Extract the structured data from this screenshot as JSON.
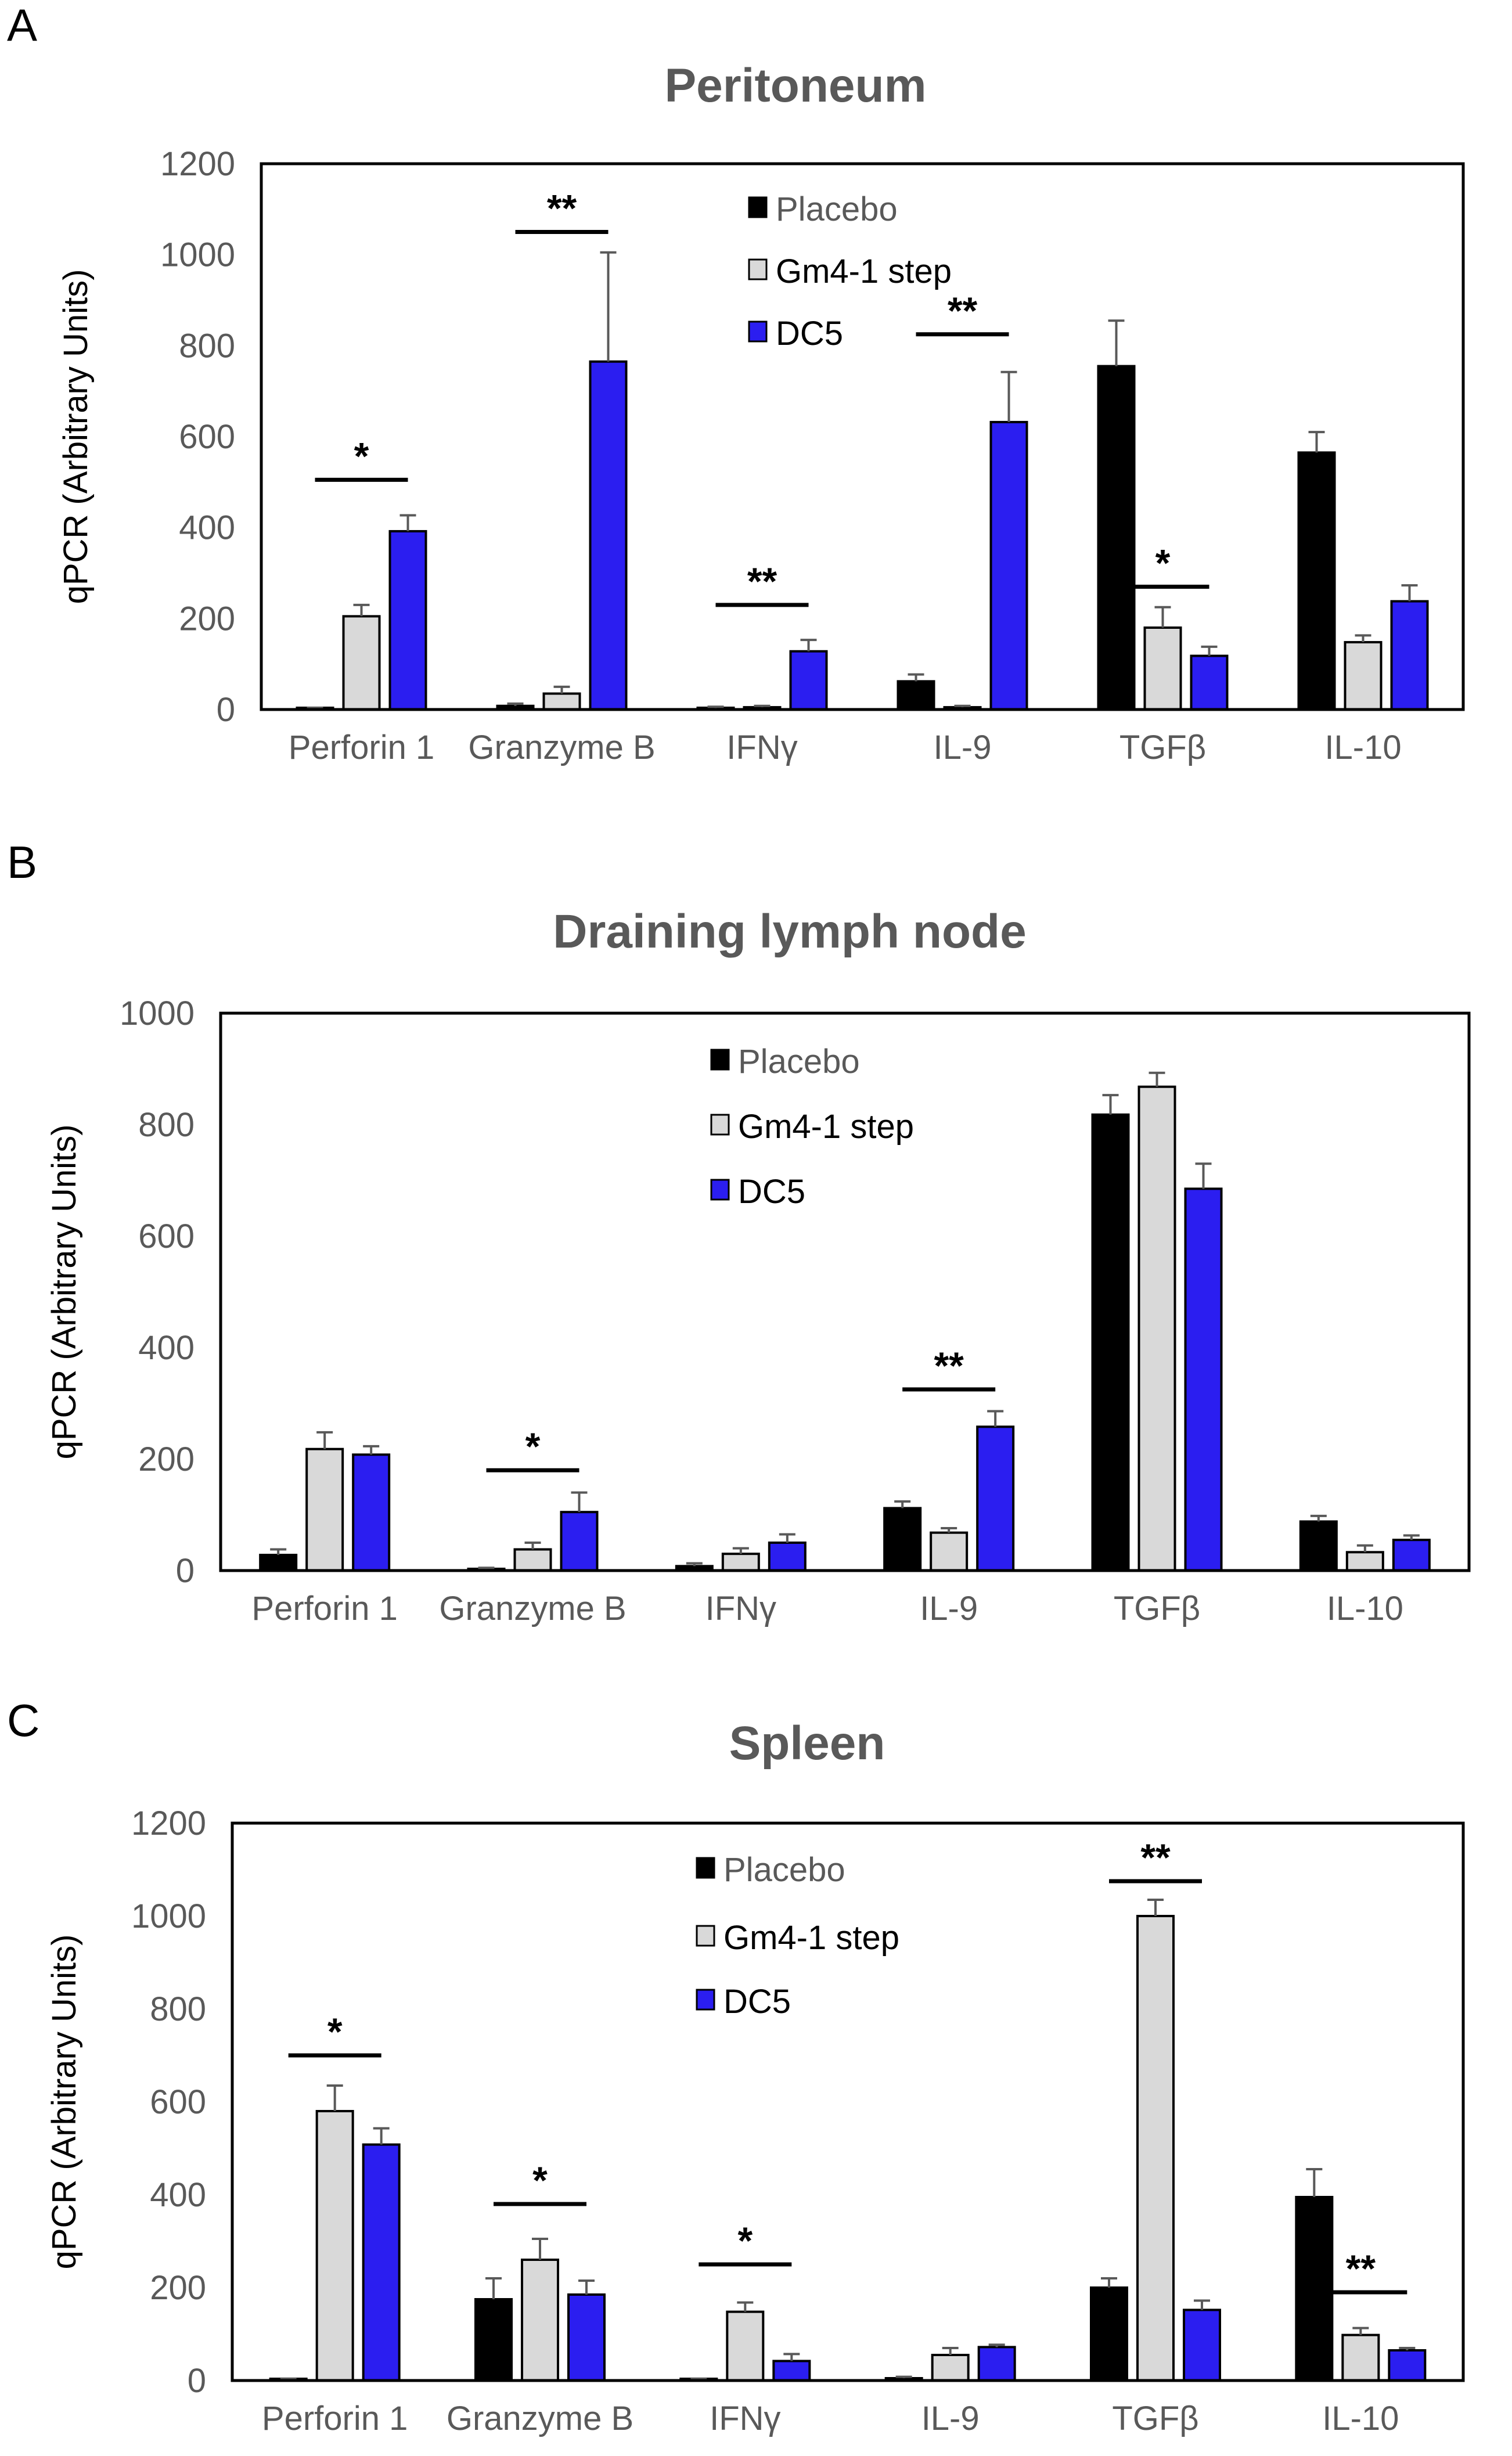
{
  "figure": {
    "legend_labels": [
      "Placebo",
      "Gm4-1 step",
      "DC5"
    ],
    "colors": {
      "placebo": "#000000",
      "gm4": "#d9d9d9",
      "dc5": "#2b1ef0",
      "axis_text": "#595959",
      "title_text": "#595959"
    }
  },
  "chart_data": [
    {
      "panel_label": "A",
      "type": "bar",
      "title": "Peritoneum",
      "xlabel": "",
      "ylabel": "qPCR (Arbitrary Units)",
      "ylim": [
        0,
        1200
      ],
      "yticks": [
        0,
        200,
        400,
        600,
        800,
        1000,
        1200
      ],
      "categories": [
        "Perforin 1",
        "Granzyme B",
        "IFNγ",
        "IL-9",
        "TGFβ",
        "IL-10"
      ],
      "series": [
        {
          "name": "Placebo",
          "values": [
            2,
            8,
            3,
            62,
            755,
            565
          ],
          "errors": [
            2,
            5,
            3,
            15,
            100,
            45
          ]
        },
        {
          "name": "Gm4-1 step",
          "values": [
            205,
            35,
            5,
            5,
            180,
            148
          ],
          "errors": [
            25,
            15,
            3,
            3,
            45,
            15
          ]
        },
        {
          "name": "DC5",
          "values": [
            392,
            765,
            128,
            632,
            118,
            238
          ],
          "errors": [
            35,
            240,
            25,
            110,
            20,
            35
          ]
        }
      ],
      "significance": [
        {
          "category": "Perforin 1",
          "label": "*",
          "y": 505
        },
        {
          "category": "Granzyme B",
          "label": "**",
          "y": 1050
        },
        {
          "category": "IFNγ",
          "label": "**",
          "y": 230
        },
        {
          "category": "IL-9",
          "label": "**",
          "y": 825
        },
        {
          "category": "TGFβ",
          "label": "*",
          "y": 270
        }
      ],
      "legend_position": "top-center"
    },
    {
      "panel_label": "B",
      "type": "bar",
      "title": "Draining lymph node",
      "xlabel": "",
      "ylabel": "qPCR (Arbitrary Units)",
      "ylim": [
        0,
        1000
      ],
      "yticks": [
        0,
        200,
        400,
        600,
        800,
        1000
      ],
      "categories": [
        "Perforin 1",
        "Granzyme B",
        "IFNγ",
        "IL-9",
        "TGFβ",
        "IL-10"
      ],
      "series": [
        {
          "name": "Placebo",
          "values": [
            28,
            3,
            8,
            112,
            818,
            88
          ],
          "errors": [
            10,
            2,
            5,
            12,
            35,
            10
          ]
        },
        {
          "name": "Gm4-1 step",
          "values": [
            218,
            38,
            30,
            68,
            868,
            33
          ],
          "errors": [
            30,
            12,
            10,
            8,
            25,
            12
          ]
        },
        {
          "name": "DC5",
          "values": [
            208,
            105,
            50,
            258,
            685,
            55
          ],
          "errors": [
            15,
            35,
            15,
            28,
            45,
            8
          ]
        }
      ],
      "significance": [
        {
          "category": "Granzyme B",
          "label": "*",
          "y": 180
        },
        {
          "category": "IL-9",
          "label": "**",
          "y": 325
        }
      ],
      "legend_position": "top-center"
    },
    {
      "panel_label": "C",
      "type": "bar",
      "title": "Spleen",
      "xlabel": "",
      "ylabel": "qPCR (Arbitrary Units)",
      "ylim": [
        0,
        1200
      ],
      "yticks": [
        0,
        200,
        400,
        600,
        800,
        1000,
        1200
      ],
      "categories": [
        "Perforin 1",
        "Granzyme B",
        "IFNγ",
        "IL-9",
        "TGFβ",
        "IL-10"
      ],
      "series": [
        {
          "name": "Placebo",
          "values": [
            2,
            175,
            2,
            5,
            200,
            395
          ],
          "errors": [
            2,
            45,
            2,
            3,
            20,
            60
          ]
        },
        {
          "name": "Gm4-1 step",
          "values": [
            580,
            260,
            148,
            55,
            1000,
            98
          ],
          "errors": [
            55,
            45,
            20,
            15,
            35,
            15
          ]
        },
        {
          "name": "DC5",
          "values": [
            508,
            185,
            42,
            72,
            152,
            65
          ],
          "errors": [
            35,
            30,
            15,
            5,
            20,
            5
          ]
        }
      ],
      "significance": [
        {
          "category": "Perforin 1",
          "label": "*",
          "y": 700
        },
        {
          "category": "Granzyme B",
          "label": "*",
          "y": 380
        },
        {
          "category": "IFNγ",
          "label": "*",
          "y": 250
        },
        {
          "category": "TGFβ",
          "label": "**",
          "y": 1075
        },
        {
          "category": "IL-10",
          "label": "**",
          "y": 190
        }
      ],
      "legend_position": "top-center"
    }
  ]
}
